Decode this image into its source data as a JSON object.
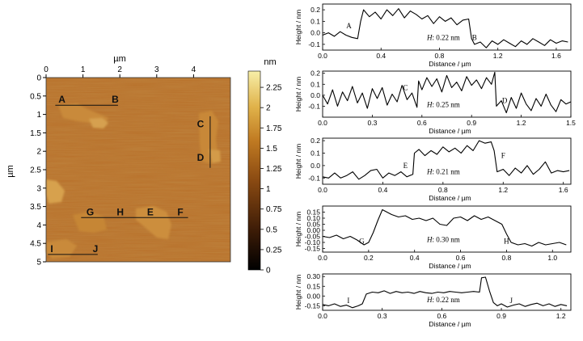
{
  "afm_image": {
    "x_axis_label": "µm",
    "y_axis_label": "µm",
    "x_ticks": [
      "0",
      "1",
      "2",
      "3",
      "4"
    ],
    "y_ticks": [
      "0",
      "0.5",
      "1",
      "1.5",
      "2",
      "2.5",
      "3",
      "3.5",
      "4",
      "4.5",
      "5"
    ],
    "colorbar_label": "nm",
    "colorbar_ticks": [
      "2.25",
      "2",
      "1.75",
      "1.5",
      "1.25",
      "1",
      "0.75",
      "0.5",
      "0.25",
      "0"
    ],
    "colorbar_colors": [
      "#000000",
      "#3d1c07",
      "#8a4a12",
      "#c07a22",
      "#e0b24a",
      "#f7efa8"
    ],
    "scan_lines": [
      {
        "labels": [
          "A",
          "B"
        ],
        "from_um": [
          0.25,
          0.75
        ],
        "to_um": [
          1.95,
          0.75
        ]
      },
      {
        "labels": [
          "C",
          "D"
        ],
        "from_um": [
          4.45,
          1.05
        ],
        "to_um": [
          4.45,
          2.45
        ]
      },
      {
        "labels": [
          "G",
          "H",
          "E",
          "F"
        ],
        "from_um": [
          0.95,
          3.8
        ],
        "to_um": [
          3.85,
          3.8
        ]
      },
      {
        "labels": [
          "I",
          "J"
        ],
        "from_um": [
          0.05,
          4.8
        ],
        "to_um": [
          1.4,
          4.8
        ]
      }
    ]
  },
  "chart_data": [
    {
      "type": "line",
      "name": "Profile A–B",
      "xlabel": "Distance / µm",
      "ylabel": "Height / nm",
      "xlim": [
        0,
        1.7
      ],
      "ylim": [
        -0.15,
        0.25
      ],
      "xticks": [
        "0.0",
        "0.4",
        "0.8",
        "1.2",
        "1.6"
      ],
      "yticks": [
        "0.2",
        "0.1",
        "0.0",
        "-0.1"
      ],
      "annotation": "H: 0.22 nm",
      "labels": [
        {
          "text": "A",
          "x": 0.18,
          "y": 0.06
        },
        {
          "text": "B",
          "x": 1.04,
          "y": -0.04
        }
      ],
      "x": [
        0,
        0.04,
        0.08,
        0.12,
        0.16,
        0.2,
        0.24,
        0.26,
        0.28,
        0.32,
        0.36,
        0.4,
        0.44,
        0.48,
        0.52,
        0.56,
        0.6,
        0.64,
        0.68,
        0.72,
        0.76,
        0.8,
        0.84,
        0.88,
        0.92,
        0.96,
        1.0,
        1.02,
        1.04,
        1.08,
        1.12,
        1.16,
        1.2,
        1.24,
        1.28,
        1.32,
        1.36,
        1.4,
        1.44,
        1.48,
        1.52,
        1.56,
        1.6,
        1.64,
        1.68
      ],
      "values": [
        -0.02,
        0.0,
        -0.03,
        0.01,
        -0.02,
        -0.04,
        -0.05,
        0.1,
        0.2,
        0.14,
        0.18,
        0.12,
        0.2,
        0.15,
        0.21,
        0.13,
        0.19,
        0.16,
        0.12,
        0.15,
        0.08,
        0.14,
        0.1,
        0.13,
        0.07,
        0.11,
        0.12,
        -0.05,
        -0.1,
        -0.08,
        -0.13,
        -0.07,
        -0.1,
        -0.06,
        -0.09,
        -0.12,
        -0.07,
        -0.1,
        -0.05,
        -0.08,
        -0.11,
        -0.06,
        -0.09,
        -0.07,
        -0.08
      ]
    },
    {
      "type": "line",
      "name": "Profile C–D",
      "xlabel": "Distance / µm",
      "ylabel": "Height / nm",
      "xlim": [
        0,
        1.5
      ],
      "ylim": [
        -0.2,
        0.22
      ],
      "xticks": [
        "0.0",
        "0.3",
        "0.6",
        "0.9",
        "1.2",
        "1.5"
      ],
      "yticks": [
        "0.2",
        "0.1",
        "0.0",
        "-0.1"
      ],
      "annotation": "H: 0.25 nm",
      "labels": [
        {
          "text": "C",
          "x": 0.5,
          "y": 0.07
        },
        {
          "text": "D",
          "x": 1.1,
          "y": -0.05
        }
      ],
      "x": [
        0,
        0.03,
        0.06,
        0.09,
        0.12,
        0.15,
        0.18,
        0.21,
        0.24,
        0.27,
        0.3,
        0.33,
        0.36,
        0.39,
        0.42,
        0.45,
        0.48,
        0.51,
        0.54,
        0.57,
        0.58,
        0.6,
        0.63,
        0.66,
        0.69,
        0.72,
        0.75,
        0.78,
        0.81,
        0.84,
        0.87,
        0.9,
        0.93,
        0.96,
        0.99,
        1.02,
        1.04,
        1.05,
        1.08,
        1.11,
        1.14,
        1.17,
        1.2,
        1.23,
        1.26,
        1.29,
        1.32,
        1.35,
        1.38,
        1.41,
        1.44,
        1.47,
        1.5
      ],
      "values": [
        0.0,
        -0.08,
        0.05,
        -0.1,
        0.03,
        -0.05,
        0.08,
        -0.07,
        0.02,
        -0.12,
        0.06,
        -0.03,
        0.07,
        -0.09,
        0.01,
        -0.06,
        0.09,
        -0.04,
        0.02,
        -0.11,
        0.13,
        0.05,
        0.16,
        0.08,
        0.15,
        0.03,
        0.18,
        0.07,
        0.12,
        0.04,
        0.17,
        0.09,
        0.14,
        0.06,
        0.16,
        0.1,
        0.21,
        -0.1,
        -0.05,
        -0.16,
        -0.02,
        -0.12,
        0.02,
        -0.08,
        -0.14,
        -0.03,
        -0.1,
        0.01,
        -0.09,
        -0.15,
        -0.04,
        -0.08,
        -0.06
      ]
    },
    {
      "type": "line",
      "name": "Profile E–F",
      "xlabel": "Distance / µm",
      "ylabel": "Height / nm",
      "xlim": [
        0,
        1.65
      ],
      "ylim": [
        -0.15,
        0.22
      ],
      "xticks": [
        "0.0",
        "0.4",
        "0.8",
        "1.2",
        "1.6"
      ],
      "yticks": [
        "0.2",
        "0.1",
        "0.0",
        "-0.1"
      ],
      "annotation": "H: 0.21 nm",
      "labels": [
        {
          "text": "E",
          "x": 0.55,
          "y": 0.0
        },
        {
          "text": "F",
          "x": 1.2,
          "y": 0.08
        }
      ],
      "x": [
        0,
        0.04,
        0.08,
        0.12,
        0.16,
        0.2,
        0.24,
        0.28,
        0.32,
        0.36,
        0.4,
        0.44,
        0.48,
        0.52,
        0.56,
        0.6,
        0.61,
        0.64,
        0.68,
        0.72,
        0.76,
        0.8,
        0.84,
        0.88,
        0.92,
        0.96,
        1.0,
        1.04,
        1.08,
        1.12,
        1.14,
        1.16,
        1.2,
        1.24,
        1.28,
        1.32,
        1.36,
        1.4,
        1.44,
        1.48,
        1.52,
        1.56,
        1.6,
        1.64
      ],
      "values": [
        -0.09,
        -0.1,
        -0.06,
        -0.1,
        -0.08,
        -0.05,
        -0.11,
        -0.08,
        -0.04,
        -0.03,
        -0.1,
        -0.06,
        -0.08,
        -0.05,
        -0.09,
        -0.07,
        0.1,
        0.13,
        0.08,
        0.12,
        0.09,
        0.15,
        0.11,
        0.14,
        0.1,
        0.16,
        0.12,
        0.2,
        0.18,
        0.19,
        0.12,
        -0.05,
        -0.03,
        -0.08,
        -0.02,
        -0.06,
        0.0,
        -0.07,
        -0.03,
        0.03,
        -0.06,
        -0.04,
        -0.05,
        -0.04
      ]
    },
    {
      "type": "line",
      "name": "Profile G–H",
      "xlabel": "Distance / µm",
      "ylabel": "Height / nm",
      "xlim": [
        0,
        1.08
      ],
      "ylim": [
        -0.18,
        0.2
      ],
      "xticks": [
        "0.0",
        "0.2",
        "0.4",
        "0.6",
        "0.8",
        "1.0"
      ],
      "yticks": [
        "0.15",
        "0.10",
        "0.05",
        "0.00",
        "-0.05",
        "-0.10",
        "-0.15"
      ],
      "annotation": "H: 0.30 nm",
      "labels": [
        {
          "text": "G",
          "x": 0.17,
          "y": -0.09
        },
        {
          "text": "H",
          "x": 0.8,
          "y": -0.09
        }
      ],
      "x": [
        0,
        0.03,
        0.06,
        0.09,
        0.12,
        0.15,
        0.18,
        0.2,
        0.22,
        0.24,
        0.26,
        0.28,
        0.3,
        0.33,
        0.36,
        0.39,
        0.42,
        0.45,
        0.48,
        0.51,
        0.54,
        0.57,
        0.6,
        0.63,
        0.66,
        0.69,
        0.72,
        0.75,
        0.78,
        0.8,
        0.82,
        0.85,
        0.88,
        0.91,
        0.94,
        0.97,
        1.0,
        1.03,
        1.06
      ],
      "values": [
        -0.05,
        -0.06,
        -0.04,
        -0.07,
        -0.05,
        -0.08,
        -0.12,
        -0.1,
        -0.02,
        0.08,
        0.17,
        0.15,
        0.13,
        0.11,
        0.12,
        0.09,
        0.1,
        0.08,
        0.1,
        0.05,
        0.04,
        0.1,
        0.11,
        0.08,
        0.12,
        0.09,
        0.11,
        0.08,
        0.05,
        -0.03,
        -0.1,
        -0.12,
        -0.11,
        -0.13,
        -0.1,
        -0.12,
        -0.11,
        -0.1,
        -0.12
      ]
    },
    {
      "type": "line",
      "name": "Profile I–J",
      "xlabel": "Distance / µm",
      "ylabel": "Height / nm",
      "xlim": [
        0,
        1.25
      ],
      "ylim": [
        -0.22,
        0.34
      ],
      "xticks": [
        "0.0",
        "0.3",
        "0.6",
        "0.9",
        "1.2"
      ],
      "yticks": [
        "0.30",
        "0.15",
        "0.00",
        "-0.15"
      ],
      "annotation": "H: 0.22 nm",
      "labels": [
        {
          "text": "I",
          "x": 0.13,
          "y": -0.07
        },
        {
          "text": "J",
          "x": 0.95,
          "y": -0.07
        }
      ],
      "x": [
        0,
        0.03,
        0.06,
        0.09,
        0.12,
        0.15,
        0.18,
        0.2,
        0.22,
        0.25,
        0.28,
        0.31,
        0.34,
        0.37,
        0.4,
        0.43,
        0.46,
        0.49,
        0.52,
        0.55,
        0.58,
        0.61,
        0.64,
        0.67,
        0.7,
        0.73,
        0.76,
        0.79,
        0.8,
        0.82,
        0.84,
        0.86,
        0.88,
        0.9,
        0.93,
        0.96,
        0.99,
        1.02,
        1.05,
        1.08,
        1.11,
        1.14,
        1.17,
        1.2,
        1.23
      ],
      "values": [
        -0.13,
        -0.15,
        -0.12,
        -0.16,
        -0.14,
        -0.18,
        -0.15,
        -0.12,
        0.03,
        0.06,
        0.05,
        0.08,
        0.04,
        0.07,
        0.05,
        0.06,
        0.04,
        0.07,
        0.05,
        0.04,
        0.06,
        0.05,
        0.07,
        0.06,
        0.05,
        0.06,
        0.07,
        0.06,
        0.28,
        0.29,
        0.08,
        -0.1,
        -0.15,
        -0.12,
        -0.17,
        -0.14,
        -0.12,
        -0.16,
        -0.13,
        -0.11,
        -0.15,
        -0.12,
        -0.16,
        -0.13,
        -0.15
      ]
    }
  ]
}
